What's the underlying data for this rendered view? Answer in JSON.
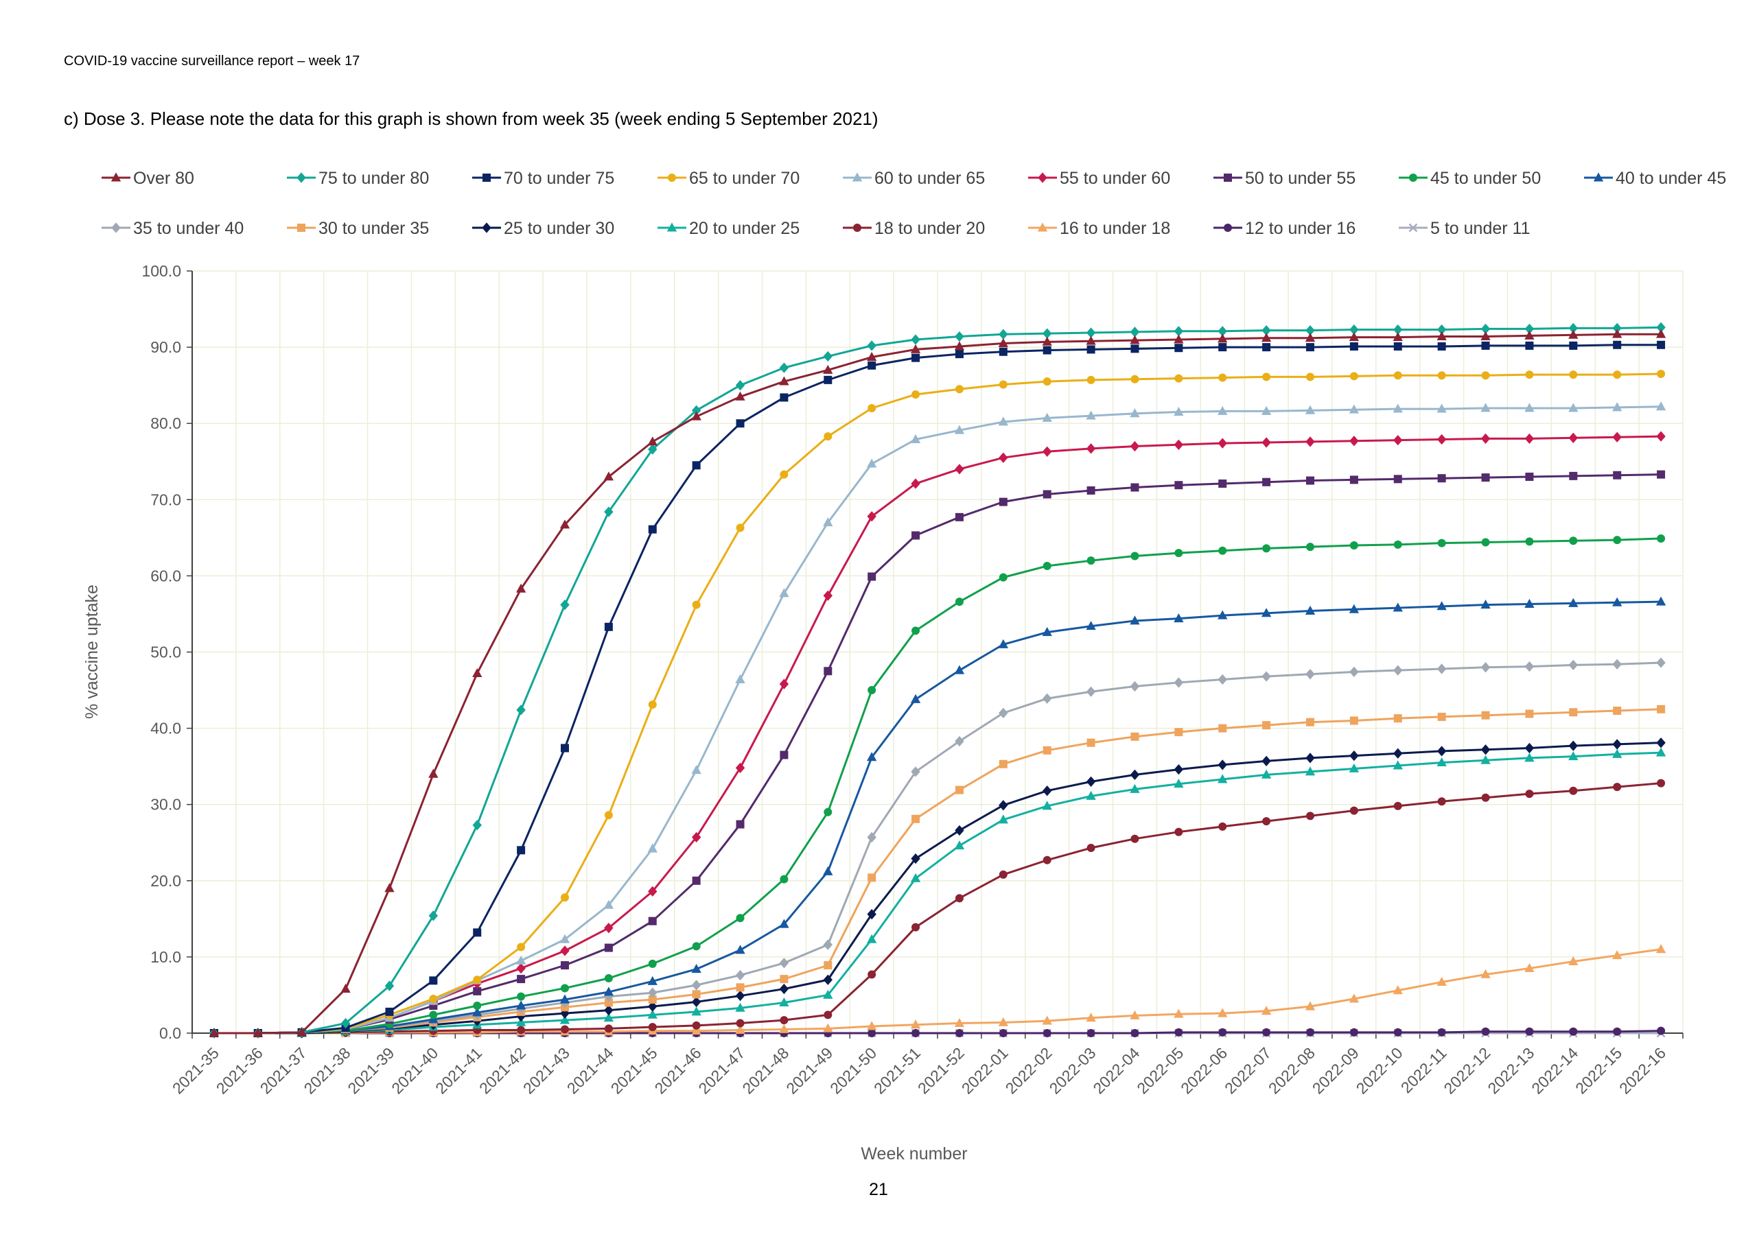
{
  "report_header": "COVID-19 vaccine surveillance report – week 17",
  "chart_caption": "c) Dose 3. Please note the data for this graph is shown from week 35 (week ending 5 September 2021)",
  "page_number": "21",
  "chart_data": {
    "type": "line",
    "xlabel": "Week number",
    "ylabel": "% vaccine uptake",
    "ylim": [
      0,
      100
    ],
    "yticks": [
      "0.0",
      "10.0",
      "20.0",
      "30.0",
      "40.0",
      "50.0",
      "60.0",
      "70.0",
      "80.0",
      "90.0",
      "100.0"
    ],
    "grid": true,
    "legend_position": "top",
    "categories": [
      "2021-35",
      "2021-36",
      "2021-37",
      "2021-38",
      "2021-39",
      "2021-40",
      "2021-41",
      "2021-42",
      "2021-43",
      "2021-44",
      "2021-45",
      "2021-46",
      "2021-47",
      "2021-48",
      "2021-49",
      "2021-50",
      "2021-51",
      "2021-52",
      "2022-01",
      "2022-02",
      "2022-03",
      "2022-04",
      "2022-05",
      "2022-06",
      "2022-07",
      "2022-08",
      "2022-09",
      "2022-10",
      "2022-11",
      "2022-12",
      "2022-13",
      "2022-14",
      "2022-15",
      "2022-16"
    ],
    "series": [
      {
        "name": "Over 80",
        "color": "#8B2332",
        "marker": "triangle",
        "values": [
          0,
          0,
          0.1,
          5.8,
          19,
          34,
          47.2,
          58.3,
          66.7,
          73,
          77.6,
          80.9,
          83.5,
          85.5,
          87,
          88.7,
          89.7,
          90.1,
          90.5,
          90.7,
          90.8,
          90.9,
          91,
          91.1,
          91.2,
          91.2,
          91.3,
          91.3,
          91.4,
          91.4,
          91.5,
          91.6,
          91.7,
          91.7
        ]
      },
      {
        "name": "75 to under 80",
        "color": "#12A695",
        "marker": "diamond",
        "values": [
          0,
          0,
          0.1,
          1.3,
          6.2,
          15.4,
          27.3,
          42.4,
          56.2,
          68.4,
          76.6,
          81.7,
          85,
          87.3,
          88.8,
          90.2,
          91,
          91.4,
          91.7,
          91.8,
          91.9,
          92,
          92.1,
          92.1,
          92.2,
          92.2,
          92.3,
          92.3,
          92.3,
          92.4,
          92.4,
          92.5,
          92.5,
          92.6
        ]
      },
      {
        "name": "70 to under 75",
        "color": "#0B2463",
        "marker": "square",
        "values": [
          0,
          0,
          0.1,
          0.7,
          2.8,
          6.9,
          13.2,
          24,
          37.4,
          53.3,
          66.1,
          74.5,
          80,
          83.4,
          85.7,
          87.6,
          88.6,
          89.1,
          89.4,
          89.6,
          89.7,
          89.8,
          89.9,
          90,
          90,
          90,
          90.1,
          90.1,
          90.1,
          90.2,
          90.2,
          90.2,
          90.3,
          90.3
        ]
      },
      {
        "name": "65 to under 70",
        "color": "#EAAE16",
        "marker": "circle",
        "values": [
          0,
          0,
          0.1,
          0.6,
          2.4,
          4.5,
          7,
          11.3,
          17.8,
          28.6,
          43.1,
          56.2,
          66.3,
          73.3,
          78.3,
          82,
          83.8,
          84.5,
          85.1,
          85.5,
          85.7,
          85.8,
          85.9,
          86,
          86.1,
          86.1,
          86.2,
          86.3,
          86.3,
          86.3,
          86.4,
          86.4,
          86.4,
          86.5
        ]
      },
      {
        "name": "60 to under 65",
        "color": "#98B7CD",
        "marker": "triangle",
        "values": [
          0,
          0,
          0.1,
          0.5,
          2,
          4.2,
          6.9,
          9.5,
          12.3,
          16.8,
          24.2,
          34.5,
          46.4,
          57.7,
          67,
          74.7,
          77.9,
          79.1,
          80.2,
          80.7,
          81,
          81.3,
          81.5,
          81.6,
          81.6,
          81.7,
          81.8,
          81.9,
          81.9,
          82,
          82,
          82,
          82.1,
          82.2
        ]
      },
      {
        "name": "55 to under 60",
        "color": "#C8194D",
        "marker": "diamond",
        "values": [
          0,
          0,
          0.1,
          0.5,
          2,
          4.2,
          6.5,
          8.5,
          10.8,
          13.8,
          18.6,
          25.7,
          34.8,
          45.8,
          57.4,
          67.8,
          72.1,
          74,
          75.5,
          76.3,
          76.7,
          77,
          77.2,
          77.4,
          77.5,
          77.6,
          77.7,
          77.8,
          77.9,
          78,
          78,
          78.1,
          78.2,
          78.3
        ]
      },
      {
        "name": "50 to under 55",
        "color": "#532A6B",
        "marker": "square",
        "values": [
          0,
          0,
          0.1,
          0.5,
          1.8,
          3.6,
          5.5,
          7.1,
          8.9,
          11.2,
          14.7,
          20,
          27.4,
          36.5,
          47.5,
          59.9,
          65.3,
          67.7,
          69.7,
          70.7,
          71.2,
          71.6,
          71.9,
          72.1,
          72.3,
          72.5,
          72.6,
          72.7,
          72.8,
          72.9,
          73,
          73.1,
          73.2,
          73.3
        ]
      },
      {
        "name": "45 to under 50",
        "color": "#10A04C",
        "marker": "circle",
        "values": [
          0,
          0,
          0.1,
          0.3,
          1.2,
          2.4,
          3.6,
          4.8,
          5.9,
          7.2,
          9.1,
          11.4,
          15.1,
          20.2,
          29,
          45,
          52.8,
          56.6,
          59.8,
          61.3,
          62,
          62.6,
          63,
          63.3,
          63.6,
          63.8,
          64,
          64.1,
          64.3,
          64.4,
          64.5,
          64.6,
          64.7,
          64.9
        ]
      },
      {
        "name": "40 to under 45",
        "color": "#1758A1",
        "marker": "triangle",
        "values": [
          0,
          0,
          0.1,
          0.3,
          0.9,
          1.8,
          2.7,
          3.6,
          4.4,
          5.4,
          6.8,
          8.4,
          10.9,
          14.3,
          21.2,
          36.2,
          43.8,
          47.6,
          51,
          52.6,
          53.4,
          54.1,
          54.4,
          54.8,
          55.1,
          55.4,
          55.6,
          55.8,
          56,
          56.2,
          56.3,
          56.4,
          56.5,
          56.6
        ]
      },
      {
        "name": "35 to under 40",
        "color": "#9FA8B3",
        "marker": "diamond",
        "values": [
          0,
          0,
          0.1,
          0.3,
          0.8,
          1.6,
          2.4,
          3.2,
          4,
          4.8,
          5.3,
          6.3,
          7.6,
          9.2,
          11.6,
          25.7,
          34.3,
          38.3,
          42,
          43.9,
          44.8,
          45.5,
          46,
          46.4,
          46.8,
          47.1,
          47.4,
          47.6,
          47.8,
          48,
          48.1,
          48.3,
          48.4,
          48.6
        ]
      },
      {
        "name": "30 to under 35",
        "color": "#EEA45D",
        "marker": "square",
        "values": [
          0,
          0,
          0.1,
          0.3,
          0.7,
          1.4,
          2.1,
          2.8,
          3.4,
          4,
          4.4,
          5.1,
          6,
          7.1,
          8.9,
          20.4,
          28.1,
          31.9,
          35.3,
          37.1,
          38.1,
          38.9,
          39.5,
          40,
          40.4,
          40.8,
          41,
          41.3,
          41.5,
          41.7,
          41.9,
          42.1,
          42.3,
          42.5
        ]
      },
      {
        "name": "25 to under 30",
        "color": "#0B1A4D",
        "marker": "diamond",
        "values": [
          0,
          0,
          0,
          0.2,
          0.6,
          1.1,
          1.6,
          2.2,
          2.6,
          3,
          3.5,
          4.1,
          4.9,
          5.8,
          7,
          15.6,
          22.9,
          26.6,
          29.9,
          31.8,
          33,
          33.9,
          34.6,
          35.2,
          35.7,
          36.1,
          36.4,
          36.7,
          37,
          37.2,
          37.4,
          37.7,
          37.9,
          38.1
        ]
      },
      {
        "name": "20 to under 25",
        "color": "#13B0A0",
        "marker": "triangle",
        "values": [
          0,
          0,
          0,
          0.2,
          0.4,
          0.8,
          1.1,
          1.4,
          1.7,
          2,
          2.4,
          2.8,
          3.3,
          4,
          5,
          12.3,
          20.3,
          24.6,
          28,
          29.8,
          31.1,
          32,
          32.7,
          33.3,
          33.9,
          34.3,
          34.7,
          35.1,
          35.5,
          35.8,
          36.1,
          36.3,
          36.6,
          36.8
        ]
      },
      {
        "name": "18 to under 20",
        "color": "#8B2332",
        "marker": "circle",
        "values": [
          0,
          0,
          0,
          0.1,
          0.2,
          0.3,
          0.4,
          0.4,
          0.5,
          0.6,
          0.8,
          1,
          1.3,
          1.7,
          2.4,
          7.7,
          13.9,
          17.7,
          20.8,
          22.7,
          24.3,
          25.5,
          26.4,
          27.1,
          27.8,
          28.5,
          29.2,
          29.8,
          30.4,
          30.9,
          31.4,
          31.8,
          32.3,
          32.8
        ]
      },
      {
        "name": "16 to under 18",
        "color": "#F2A660",
        "marker": "triangle",
        "values": [
          0,
          0,
          0,
          0,
          0.1,
          0.1,
          0.1,
          0.2,
          0.2,
          0.2,
          0.3,
          0.3,
          0.4,
          0.5,
          0.6,
          0.9,
          1.1,
          1.3,
          1.4,
          1.6,
          2,
          2.3,
          2.5,
          2.6,
          2.9,
          3.5,
          4.5,
          5.6,
          6.7,
          7.7,
          8.5,
          9.4,
          10.2,
          11
        ]
      },
      {
        "name": "12 to under 16",
        "color": "#4B2569",
        "marker": "circle",
        "values": [
          0,
          0,
          0,
          0,
          0,
          0,
          0,
          0,
          0,
          0,
          0,
          0,
          0,
          0,
          0,
          0,
          0,
          0,
          0,
          0,
          0,
          0,
          0.1,
          0.1,
          0.1,
          0.1,
          0.1,
          0.1,
          0.1,
          0.2,
          0.2,
          0.2,
          0.2,
          0.3
        ]
      },
      {
        "name": "5 to under 11",
        "color": "#A5AEBE",
        "marker": "x",
        "values": [
          0,
          0,
          0,
          0,
          0,
          0,
          0,
          0,
          0,
          0,
          0,
          0,
          0,
          0,
          0,
          0,
          0,
          0,
          0,
          0,
          0,
          0,
          0,
          0,
          0,
          0,
          0,
          0,
          0,
          0,
          0,
          0,
          0,
          0
        ]
      }
    ]
  }
}
